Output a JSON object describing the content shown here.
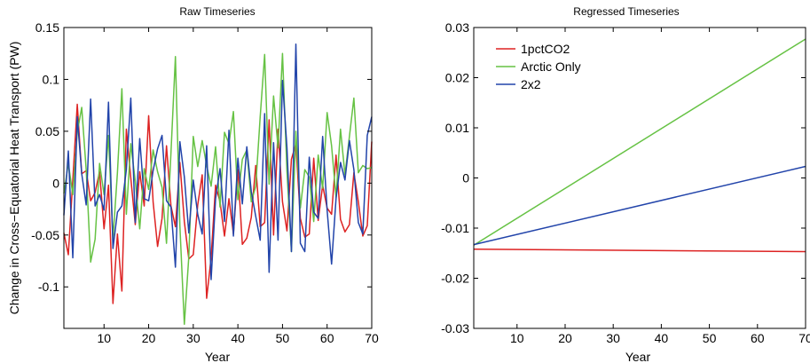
{
  "chart_data": [
    {
      "type": "line",
      "title": "Raw Timeseries",
      "xlabel": "Year",
      "ylabel": "Change in Cross−Equatorial Heat Transport (PW)",
      "xlim": [
        1,
        70
      ],
      "ylim": [
        -0.14,
        0.15
      ],
      "xticks": [
        10,
        20,
        30,
        40,
        50,
        60,
        70
      ],
      "yticks": [
        -0.1,
        -0.05,
        0,
        0.05,
        0.1,
        0.15
      ],
      "xtick_labels": [
        "10",
        "20",
        "30",
        "40",
        "50",
        "60",
        "70"
      ],
      "ytick_labels": [
        "-0.1",
        "-0.05",
        "0",
        "0.05",
        "0.1",
        "0.15"
      ],
      "grid": false,
      "x": [
        1,
        2,
        3,
        4,
        5,
        6,
        7,
        8,
        9,
        10,
        11,
        12,
        13,
        14,
        15,
        16,
        17,
        18,
        19,
        20,
        21,
        22,
        23,
        24,
        25,
        26,
        27,
        28,
        29,
        30,
        31,
        32,
        33,
        34,
        35,
        36,
        37,
        38,
        39,
        40,
        41,
        42,
        43,
        44,
        45,
        46,
        47,
        48,
        49,
        50,
        51,
        52,
        53,
        54,
        55,
        56,
        57,
        58,
        59,
        60,
        61,
        62,
        63,
        64,
        65,
        66,
        67,
        68,
        69,
        70
      ],
      "series": [
        {
          "color": "#dd2222",
          "values": [
            -0.048,
            -0.069,
            0.003,
            0.076,
            0.009,
            0.012,
            -0.017,
            -0.009,
            0.011,
            -0.044,
            -0.002,
            -0.116,
            -0.049,
            -0.104,
            0.052,
            0.005,
            -0.04,
            0.011,
            -0.022,
            0.065,
            -0.018,
            -0.061,
            -0.034,
            0.036,
            -0.022,
            -0.042,
            0.02,
            -0.037,
            -0.073,
            -0.069,
            -0.021,
            0.008,
            -0.111,
            -0.072,
            -0.002,
            -0.018,
            -0.051,
            -0.015,
            -0.049,
            0.013,
            -0.059,
            -0.053,
            -0.033,
            0.017,
            -0.042,
            -0.038,
            0.061,
            -0.05,
            0.052,
            -0.018,
            -0.046,
            0.023,
            0.038,
            -0.034,
            -0.052,
            -0.049,
            0.024,
            -0.036,
            -0.002,
            -0.024,
            -0.03,
            0.027,
            -0.035,
            -0.047,
            -0.04,
            0.01,
            -0.018,
            -0.051,
            -0.041,
            0.04
          ]
        },
        {
          "color": "#66c244",
          "values": [
            -0.01,
            0.019,
            -0.011,
            0.049,
            0.073,
            0.013,
            -0.076,
            -0.054,
            0.019,
            -0.011,
            0.046,
            -0.054,
            0.01,
            0.091,
            -0.03,
            0.038,
            0.002,
            -0.044,
            0.014,
            -0.006,
            0.032,
            0.011,
            -0.004,
            -0.058,
            0.029,
            0.122,
            -0.041,
            -0.136,
            -0.071,
            0.045,
            0.016,
            0.041,
            0.017,
            -0.003,
            0.035,
            -0.023,
            0.049,
            0.038,
            0.069,
            -0.016,
            0.023,
            0.032,
            -0.018,
            -0.003,
            0.064,
            0.124,
            -0.001,
            0.084,
            0.034,
            0.125,
            0.011,
            -0.066,
            0.05,
            -0.024,
            0.013,
            0.006,
            -0.037,
            0.027,
            -0.005,
            0.068,
            0.036,
            -0.014,
            0.052,
            0.008,
            0.045,
            0.082,
            0.01,
            0.017,
            0.014,
            0.015
          ]
        },
        {
          "color": "#2244aa",
          "values": [
            -0.031,
            0.031,
            -0.072,
            0.064,
            0.009,
            -0.021,
            0.081,
            -0.022,
            -0.011,
            -0.026,
            0.078,
            -0.063,
            -0.028,
            -0.022,
            0.013,
            0.082,
            -0.038,
            0.043,
            -0.015,
            -0.017,
            0.012,
            0.033,
            0.046,
            -0.017,
            -0.023,
            -0.081,
            0.04,
            0.006,
            -0.048,
            0.003,
            -0.03,
            -0.049,
            0.036,
            -0.093,
            -0.015,
            0.014,
            -0.037,
            0.051,
            -0.051,
            0.024,
            -0.02,
            0.035,
            -0.008,
            -0.032,
            -0.055,
            0.067,
            -0.086,
            0.039,
            -0.055,
            0.099,
            0.034,
            -0.066,
            0.134,
            -0.058,
            -0.066,
            0.025,
            -0.028,
            -0.034,
            0.045,
            -0.026,
            -0.078,
            -0.015,
            0.02,
            0.003,
            0.041,
            0.013,
            -0.038,
            -0.049,
            0.046,
            0.064
          ]
        }
      ]
    },
    {
      "type": "line",
      "title": "Regressed Timeseries",
      "xlabel": "Year",
      "ylabel": "",
      "xlim": [
        1,
        70
      ],
      "ylim": [
        -0.03,
        0.03
      ],
      "xticks": [
        10,
        20,
        30,
        40,
        50,
        60,
        70
      ],
      "yticks": [
        -0.03,
        -0.02,
        -0.01,
        0,
        0.01,
        0.02,
        0.03
      ],
      "xtick_labels": [
        "10",
        "20",
        "30",
        "40",
        "50",
        "60",
        "70"
      ],
      "ytick_labels": [
        "-0.03",
        "-0.02",
        "-0.01",
        "0",
        "0.01",
        "0.02",
        "0.03"
      ],
      "grid": false,
      "legend_position": "top-left",
      "x": [
        1,
        70
      ],
      "series": [
        {
          "name": "1pctCO2",
          "color": "#dd2222",
          "values": [
            -0.0142,
            -0.0147
          ]
        },
        {
          "name": "Arctic Only",
          "color": "#66c244",
          "values": [
            -0.0134,
            0.0277
          ]
        },
        {
          "name": "2x2",
          "color": "#2244aa",
          "values": [
            -0.0133,
            0.0023
          ]
        }
      ]
    }
  ]
}
